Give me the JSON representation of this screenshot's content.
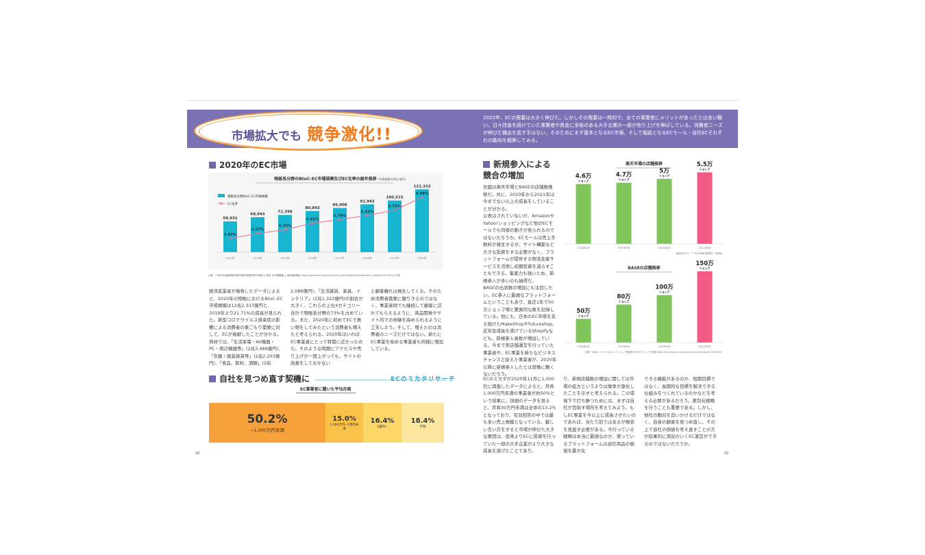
{
  "banner": {
    "title_lead": "市場拡大でも",
    "title_emph": "競争激化!!",
    "intro": "2020年、ECの需要は大きく伸びた。しかしその需要は一時的で、全ての事業者にメリットがあったとは言い難い。日々改善を続けていた事業者や資金に余裕のある大手企業の一部が売り上げを伸ばしている。消費者ニーズが伸びた機会を逃す手はない。そのためにまず基本となるEC市場、そして販路となるECモール・自社ECそれぞれの動向を観察してみる。"
  },
  "section1": {
    "heading": "2020年のEC市場",
    "chart_title": "物販系分野のBtoC-EC市場規模及びEC化率の経年推移",
    "chart_unit": "(市場規模の単位:億円)",
    "source": "出典 「令和2年度産業経済研究委託事業(電子商取引に関する市場調査)」(経済産業省) https://www.meti.go.jp/policy/it_policy/statistics/outlook/ie_outlook.html を元に作成",
    "body": [
      "経済産業省が発表したデータによると、2020年の物販におけるBtoC-EC市場規模は12兆2,333億円と、2019年より21.71%の成長が見られた。新型コロナウイルス感染症の影響による消費者の巣ごもり需要に対して、ECが貢献したことが分かる。商材では、「生活家電・AV機器・PC・周辺機器等」(2兆3,489億円)、「衣類・服装雑貨等」(2兆2,203億円)、「食品、飲料、酒類」(2兆",
      "2,086億円)、「生活雑貨、家具、インテリア」(2兆1,322億円)の割合が大きく、これらの上位4カテゴリー合計で物販系分野の73%を占めている。また、2020年に初めてECで買い物をしてみたという消費者も増えたと考えられる。2020年はいわばEC事業者にとって特需に近かったのだ。そのような時期にアクセスや売り上げが一度上がっても、サイトの改善をしておかない",
      "と顧客離れは発生してくる。そのため消費者需要に頼りきるのではなく、事業者側でも継続して顧客に訪れてもらえるように、商品開発やサイト内での体験を高められるように工夫しよう。そして、増えたのは消費者のニーズだけではない。新たにEC事業を始める事業者も同様に増加している。"
    ]
  },
  "chart_data": [
    {
      "type": "bar",
      "title": "物販系分野のBtoC-EC市場規模及びEC化率の経年推移",
      "categories": [
        "2013年",
        "2014年",
        "2015年",
        "2016年",
        "2017年",
        "2018年",
        "2019年",
        "2020年"
      ],
      "series": [
        {
          "name": "物販系分野BtoC-EC市場規模",
          "values": [
            59931,
            68043,
            72398,
            80043,
            86008,
            92992,
            100515,
            122333
          ],
          "labels": [
            "59,931",
            "68,043",
            "72,398",
            "80,043",
            "86,008",
            "92,992",
            "100,515",
            "122,333"
          ],
          "color": "#19b6d2"
        },
        {
          "name": "EC化率",
          "values": [
            3.85,
            4.37,
            4.75,
            5.43,
            5.79,
            6.22,
            6.76,
            8.08
          ],
          "labels": [
            "3.85%",
            "4.37%",
            "4.75%",
            "5.43%",
            "5.79%",
            "6.22%",
            "6.76%",
            "8.08%"
          ],
          "color": "#ef6f8e"
        }
      ],
      "legend": "top-left"
    },
    {
      "type": "bar",
      "title": "楽天市場の店舗推移",
      "categories": [
        "2018年3月",
        "2019年3月",
        "2020年3月",
        "2021年3月"
      ],
      "values": [
        46000,
        47000,
        50000,
        55000
      ],
      "labels": [
        "4.6万",
        "4.7万",
        "5万",
        "5.5万"
      ],
      "unit": "ショップ",
      "source": "出典 楽天グループ 2021年度決算資料 一部改変",
      "colors": [
        "#7fc55a",
        "#7fc55a",
        "#7fc55a",
        "#f25c84"
      ]
    },
    {
      "type": "bar",
      "title": "BASEの店舗推移",
      "categories": [
        "2018年9月",
        "2019年9月",
        "2020年9月",
        "2021年9月"
      ],
      "values": [
        500000,
        800000,
        1000000,
        1500000
      ],
      "labels": [
        "50万",
        "80万",
        "100万",
        "150万"
      ],
      "unit": "ショップ",
      "source": "出典 「BASE」(ベイス)のネットショップ開設数が150万ショップを突破 https://binc.jp/press-room/news/press-release/pr_20210901",
      "colors": [
        "#7fc55a",
        "#7fc55a",
        "#7fc55a",
        "#f25c84"
      ]
    }
  ],
  "section2": {
    "heading": "新規参入による競合の増加",
    "body": [
      "右図は楽天市場とBASEの店舗数推移だ。共に、2020年から2021年は今までない以上の成長をしていることが分かる。",
      "公表はされていないが、AmazonやYahoo!ショッピングなど他のECモールでも同様の動きが見られるのではないだろうか。ECモールは売上手数料が発生するが、サイト構築など大きな投資をする必要がなく、プラットフォームが提供する物流支援サービスを活用し初期投資を減らすこともできる。集客力も強いため、新規参入が多いのも納得だ。",
      "BASEの出店数の増加にも注目したい。EC参入に最適なプラットフォームということもあり、直近1年で50万ショップ増と驚異的な数を記録している。他にも、日本のEC市場を支え続けたMakeShopやfutureshop、近年急成長を遂げているShopifyなども、新規参入者数が増加している。今まで実店舗運営を行っていた事業者や、EC事業を新たなビジネスチャンスと捉えた事業者が、2020年以降に新規参入したとは想像に難くないだろう。"
    ]
  },
  "section3": {
    "heading": "自社を見つめ直す契機に",
    "logo_text": "ECのミカタリサーチ",
    "table_title": "EC事業者に聞いた平均月商",
    "segments": [
      {
        "pct": "50.2%",
        "label": "~1,000万円未満",
        "color": "#f7a13b"
      },
      {
        "pct": "15.0%",
        "label": "1,000万円~1億円未満",
        "color": "#fbc24a"
      },
      {
        "pct": "16.4%",
        "label": "1億円~",
        "color": "#fcd666"
      },
      {
        "pct": "18.4%",
        "label": "不明",
        "color": "#fde79e"
      }
    ],
    "body": [
      "ECのミカタが2020年11月に1,000社に調査したデータによると、月商1,000万円未満の事業者が約50%という結果に。詳細のデータを見ると、月商30万円未満は全体の13.2%となっており、有効回答の中では最も多い売上規模となっている。厳しい言い方をすると市場が伸びた大きな要因は、従来よりECに投資を行っていた一部の大手企業がより大きな成長を遂げたことであり、",
      "り、新規店舗数の増加に関しては市場の拡大というよりは競争が激化したことを示すと考えられる。この環境下で打ち勝つためには、まずは自社が目指す場所を考えてみよう。もしEC事業を今以上に成長させたいのであれば、当たり前ではあるが現状を見直す必要がある。今行っている戦略は本当に最適なのか、使っているプラットフォームは自社商品の価値を最大化",
      "できる機能があるのか、短期目標ではなく、長期的な目標を解決できる仕組みをつくれているのかなどを考える必要があるだろう。差別化戦略を行うことも重要である。しかし、他社の動向を追いかけるだけではなく、自身の顧客を見つめ直し、その上で自社の価値を考え直すことの方が結果的に満足のいくEC運営ができるのではないだろうか。"
    ]
  },
  "pages": {
    "left": "08",
    "right": "09"
  }
}
